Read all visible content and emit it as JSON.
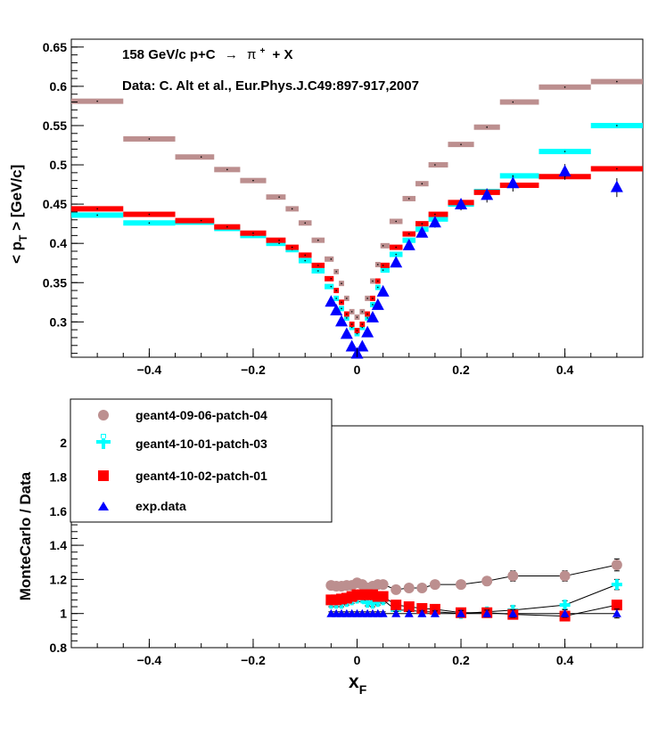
{
  "chart_data": [
    {
      "type": "scatter",
      "title": "158 GeV/c p+C",
      "title_arrow": "→",
      "title_final": "π",
      "title_final_sup": "+",
      "title_suffix": "+ X",
      "subtitle": "Data: C. Alt et al., Eur.Phys.J.C49:897-917,2007",
      "ylabel_main": "< p",
      "ylabel_sub": "T",
      "ylabel_tail": " > [GeV/c]",
      "xlim": [
        -0.55,
        0.55
      ],
      "ylim": [
        0.255,
        0.66
      ],
      "x_ticks": [
        -0.4,
        -0.2,
        0,
        0.2,
        0.4
      ],
      "x_tick_labels": [
        "−0.4",
        "−0.2",
        "0",
        "0.2",
        "0.4"
      ],
      "y_ticks": [
        0.3,
        0.35,
        0.4,
        0.45,
        0.5,
        0.55,
        0.6,
        0.65
      ],
      "y_tick_labels": [
        "0.3",
        "0.35",
        "0.4",
        "0.45",
        "0.5",
        "0.55",
        "0.6",
        "0.65"
      ],
      "series": [
        {
          "name": "geant4-09-06-patch-04",
          "color": "#bc8f8f",
          "style": "band",
          "x": [
            -0.5,
            -0.4,
            -0.3,
            -0.25,
            -0.2,
            -0.15,
            -0.125,
            -0.1,
            -0.075,
            -0.05,
            -0.04,
            -0.03,
            -0.02,
            -0.01,
            0,
            0.01,
            0.02,
            0.03,
            0.04,
            0.05,
            0.075,
            0.1,
            0.125,
            0.15,
            0.2,
            0.25,
            0.3,
            0.4,
            0.5
          ],
          "x_lo": [
            -0.55,
            -0.45,
            -0.35,
            -0.275,
            -0.225,
            -0.175,
            -0.1375,
            -0.1125,
            -0.0875,
            -0.0625,
            -0.045,
            -0.035,
            -0.025,
            -0.015,
            -0.005,
            0.005,
            0.015,
            0.025,
            0.035,
            0.045,
            0.0625,
            0.0875,
            0.1125,
            0.1375,
            0.175,
            0.225,
            0.275,
            0.35,
            0.45
          ],
          "x_hi": [
            -0.45,
            -0.35,
            -0.275,
            -0.225,
            -0.175,
            -0.1375,
            -0.1125,
            -0.0875,
            -0.0625,
            -0.045,
            -0.035,
            -0.025,
            -0.015,
            -0.005,
            0.005,
            0.015,
            0.025,
            0.035,
            0.045,
            0.0625,
            0.0875,
            0.1125,
            0.1375,
            0.175,
            0.225,
            0.275,
            0.35,
            0.45,
            0.55
          ],
          "y": [
            0.581,
            0.533,
            0.51,
            0.494,
            0.48,
            0.459,
            0.444,
            0.426,
            0.404,
            0.38,
            0.364,
            0.349,
            0.33,
            0.313,
            0.306,
            0.313,
            0.33,
            0.352,
            0.373,
            0.397,
            0.428,
            0.457,
            0.476,
            0.5,
            0.526,
            0.548,
            0.58,
            0.599,
            0.606
          ]
        },
        {
          "name": "geant4-10-01-patch-03",
          "color": "#00ffff",
          "style": "band",
          "x": [
            -0.5,
            -0.4,
            -0.3,
            -0.25,
            -0.2,
            -0.15,
            -0.125,
            -0.1,
            -0.075,
            -0.05,
            -0.04,
            -0.03,
            -0.02,
            -0.01,
            0,
            0.01,
            0.02,
            0.03,
            0.04,
            0.05,
            0.075,
            0.1,
            0.125,
            0.15,
            0.2,
            0.25,
            0.3,
            0.4,
            0.5
          ],
          "x_lo": [
            -0.55,
            -0.45,
            -0.35,
            -0.275,
            -0.225,
            -0.175,
            -0.1375,
            -0.1125,
            -0.0875,
            -0.0625,
            -0.045,
            -0.035,
            -0.025,
            -0.015,
            -0.005,
            0.005,
            0.015,
            0.025,
            0.035,
            0.045,
            0.0625,
            0.0875,
            0.1125,
            0.1375,
            0.175,
            0.225,
            0.275,
            0.35,
            0.45
          ],
          "x_hi": [
            -0.45,
            -0.35,
            -0.275,
            -0.225,
            -0.175,
            -0.1375,
            -0.1125,
            -0.0875,
            -0.0625,
            -0.045,
            -0.035,
            -0.025,
            -0.015,
            -0.005,
            0.005,
            0.015,
            0.025,
            0.035,
            0.045,
            0.0625,
            0.0875,
            0.1125,
            0.1375,
            0.175,
            0.225,
            0.275,
            0.35,
            0.45,
            0.55
          ],
          "y": [
            0.436,
            0.426,
            0.427,
            0.419,
            0.41,
            0.4,
            0.392,
            0.378,
            0.365,
            0.345,
            0.33,
            0.317,
            0.305,
            0.293,
            0.285,
            0.293,
            0.305,
            0.322,
            0.344,
            0.366,
            0.386,
            0.404,
            0.418,
            0.431,
            0.45,
            0.466,
            0.486,
            0.517,
            0.55
          ]
        },
        {
          "name": "geant4-10-02-patch-01",
          "color": "#ff0000",
          "style": "band",
          "x": [
            -0.5,
            -0.4,
            -0.3,
            -0.25,
            -0.2,
            -0.15,
            -0.125,
            -0.1,
            -0.075,
            -0.05,
            -0.04,
            -0.03,
            -0.02,
            -0.01,
            0,
            0.01,
            0.02,
            0.03,
            0.04,
            0.05,
            0.075,
            0.1,
            0.125,
            0.15,
            0.2,
            0.25,
            0.3,
            0.4,
            0.5
          ],
          "x_lo": [
            -0.55,
            -0.45,
            -0.35,
            -0.275,
            -0.225,
            -0.175,
            -0.1375,
            -0.1125,
            -0.0875,
            -0.0625,
            -0.045,
            -0.035,
            -0.025,
            -0.015,
            -0.005,
            0.005,
            0.015,
            0.025,
            0.035,
            0.045,
            0.0625,
            0.0875,
            0.1125,
            0.1375,
            0.175,
            0.225,
            0.275,
            0.35,
            0.45
          ],
          "x_hi": [
            -0.45,
            -0.35,
            -0.275,
            -0.225,
            -0.175,
            -0.1375,
            -0.1125,
            -0.0875,
            -0.0625,
            -0.045,
            -0.035,
            -0.025,
            -0.015,
            -0.005,
            0.005,
            0.015,
            0.025,
            0.035,
            0.045,
            0.0625,
            0.0875,
            0.1125,
            0.1375,
            0.175,
            0.225,
            0.275,
            0.35,
            0.45,
            0.55
          ],
          "y": [
            0.444,
            0.437,
            0.429,
            0.421,
            0.413,
            0.404,
            0.395,
            0.385,
            0.372,
            0.355,
            0.34,
            0.325,
            0.31,
            0.297,
            0.289,
            0.297,
            0.31,
            0.33,
            0.352,
            0.372,
            0.395,
            0.412,
            0.425,
            0.437,
            0.452,
            0.465,
            0.474,
            0.485,
            0.495
          ]
        },
        {
          "name": "exp.data",
          "color": "#0000ff",
          "style": "triangle",
          "x": [
            -0.05,
            -0.04,
            -0.03,
            -0.02,
            -0.01,
            0,
            0.01,
            0.02,
            0.03,
            0.04,
            0.05,
            0.075,
            0.1,
            0.125,
            0.15,
            0.2,
            0.25,
            0.3,
            0.4,
            0.5
          ],
          "y": [
            0.325,
            0.314,
            0.3,
            0.284,
            0.268,
            0.259,
            0.268,
            0.286,
            0.305,
            0.321,
            0.338,
            0.375,
            0.397,
            0.413,
            0.426,
            0.449,
            0.461,
            0.476,
            0.491,
            0.471
          ],
          "err": [
            0.003,
            0.003,
            0.003,
            0.003,
            0.003,
            0.003,
            0.003,
            0.003,
            0.003,
            0.003,
            0.003,
            0.004,
            0.004,
            0.005,
            0.006,
            0.007,
            0.009,
            0.01,
            0.01,
            0.012
          ]
        }
      ]
    },
    {
      "type": "scatter",
      "xlabel": "x",
      "xlabel_sub": "F",
      "ylabel": "MonteCarlo / Data",
      "xlim": [
        -0.55,
        0.55
      ],
      "ylim": [
        0.8,
        2.1
      ],
      "x_ticks": [
        -0.4,
        -0.2,
        0,
        0.2,
        0.4
      ],
      "x_tick_labels": [
        "−0.4",
        "−0.2",
        "0",
        "0.2",
        "0.4"
      ],
      "y_ticks": [
        0.8,
        1,
        1.2,
        1.4,
        1.6,
        1.8,
        2
      ],
      "y_tick_labels": [
        "0.8",
        "1",
        "1.2",
        "1.4",
        "1.6",
        "1.8",
        "2"
      ],
      "legend_position": "top-left",
      "series": [
        {
          "name": "geant4-09-06-patch-04",
          "color": "#bc8f8f",
          "marker": "circle",
          "x": [
            -0.05,
            -0.04,
            -0.03,
            -0.02,
            -0.01,
            0,
            0.01,
            0.02,
            0.03,
            0.04,
            0.05,
            0.075,
            0.1,
            0.125,
            0.15,
            0.2,
            0.25,
            0.3,
            0.4,
            0.5
          ],
          "y": [
            1.165,
            1.16,
            1.16,
            1.165,
            1.165,
            1.18,
            1.17,
            1.15,
            1.16,
            1.17,
            1.17,
            1.14,
            1.15,
            1.15,
            1.17,
            1.17,
            1.19,
            1.22,
            1.22,
            1.285
          ],
          "err": [
            0.02,
            0.02,
            0.02,
            0.02,
            0.02,
            0.02,
            0.02,
            0.02,
            0.02,
            0.02,
            0.02,
            0.02,
            0.02,
            0.02,
            0.02,
            0.02,
            0.025,
            0.03,
            0.03,
            0.035
          ]
        },
        {
          "name": "geant4-10-01-patch-03",
          "color": "#00ffff",
          "marker": "cross",
          "x": [
            -0.05,
            -0.04,
            -0.03,
            -0.02,
            -0.01,
            0,
            0.01,
            0.02,
            0.03,
            0.04,
            0.05,
            0.075,
            0.1,
            0.125,
            0.15,
            0.2,
            0.25,
            0.3,
            0.4,
            0.5
          ],
          "y": [
            1.06,
            1.06,
            1.06,
            1.07,
            1.08,
            1.09,
            1.09,
            1.065,
            1.06,
            1.07,
            1.08,
            1.02,
            1.02,
            1.01,
            1.01,
            1.0,
            1.01,
            1.02,
            1.05,
            1.17
          ],
          "err": [
            0.02,
            0.02,
            0.02,
            0.02,
            0.02,
            0.02,
            0.02,
            0.02,
            0.02,
            0.02,
            0.02,
            0.02,
            0.02,
            0.02,
            0.02,
            0.02,
            0.02,
            0.025,
            0.025,
            0.03
          ]
        },
        {
          "name": "geant4-10-02-patch-01",
          "color": "#ff0000",
          "marker": "square",
          "x": [
            -0.05,
            -0.04,
            -0.03,
            -0.02,
            -0.01,
            0,
            0.01,
            0.02,
            0.03,
            0.04,
            0.05,
            0.075,
            0.1,
            0.125,
            0.15,
            0.2,
            0.25,
            0.3,
            0.4,
            0.5
          ],
          "y": [
            1.08,
            1.08,
            1.085,
            1.09,
            1.1,
            1.11,
            1.11,
            1.11,
            1.11,
            1.1,
            1.1,
            1.05,
            1.04,
            1.03,
            1.025,
            1.005,
            1.005,
            0.995,
            0.985,
            1.05
          ],
          "err": [
            0.02,
            0.02,
            0.02,
            0.02,
            0.02,
            0.02,
            0.02,
            0.02,
            0.02,
            0.02,
            0.02,
            0.02,
            0.02,
            0.02,
            0.02,
            0.02,
            0.02,
            0.02,
            0.02,
            0.025
          ]
        },
        {
          "name": "exp.data",
          "color": "#0000ff",
          "marker": "triangle",
          "x": [
            -0.05,
            -0.04,
            -0.03,
            -0.02,
            -0.01,
            0,
            0.01,
            0.02,
            0.03,
            0.04,
            0.05,
            0.075,
            0.1,
            0.125,
            0.15,
            0.2,
            0.25,
            0.3,
            0.4,
            0.5
          ],
          "y": [
            1,
            1,
            1,
            1,
            1,
            1,
            1,
            1,
            1,
            1,
            1,
            1,
            1,
            1,
            1,
            1,
            1,
            1,
            1,
            1
          ],
          "err": [
            0.01,
            0.01,
            0.01,
            0.01,
            0.01,
            0.01,
            0.01,
            0.01,
            0.01,
            0.01,
            0.01,
            0.012,
            0.012,
            0.015,
            0.015,
            0.018,
            0.02,
            0.022,
            0.022,
            0.026
          ]
        }
      ]
    }
  ]
}
